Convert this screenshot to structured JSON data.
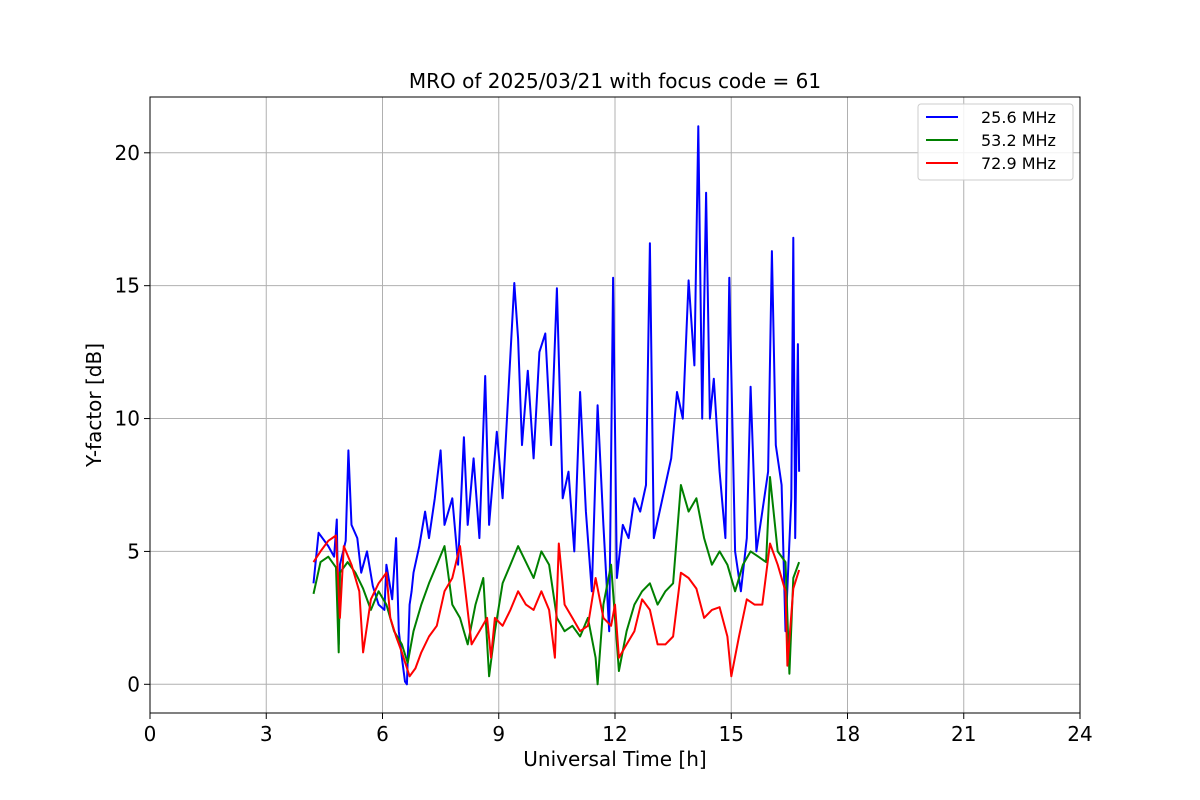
{
  "chart_data": {
    "type": "line",
    "title": "MRO of 2025/03/21 with focus code = 61",
    "xlabel": "Universal Time [h]",
    "ylabel": "Y-factor [dB]",
    "xlim": [
      0,
      24
    ],
    "ylim": [
      -1.08,
      22.1
    ],
    "xticks": [
      0,
      3,
      6,
      9,
      12,
      15,
      18,
      21,
      24
    ],
    "yticks": [
      0,
      5,
      10,
      15,
      20
    ],
    "grid": true,
    "legend_position": "top-right",
    "series": [
      {
        "name": "25.6 MHz",
        "color": "#0000ff",
        "values": [
          [
            4.22,
            3.8
          ],
          [
            4.35,
            5.7
          ],
          [
            4.6,
            5.2
          ],
          [
            4.75,
            4.8
          ],
          [
            4.82,
            6.2
          ],
          [
            4.87,
            1.5
          ],
          [
            4.9,
            4.5
          ],
          [
            5.05,
            5.4
          ],
          [
            5.12,
            8.8
          ],
          [
            5.2,
            6.0
          ],
          [
            5.35,
            5.5
          ],
          [
            5.45,
            4.2
          ],
          [
            5.6,
            5.0
          ],
          [
            5.75,
            3.7
          ],
          [
            5.9,
            3.0
          ],
          [
            6.05,
            2.8
          ],
          [
            6.1,
            4.5
          ],
          [
            6.25,
            3.2
          ],
          [
            6.35,
            5.5
          ],
          [
            6.42,
            2.0
          ],
          [
            6.5,
            1.0
          ],
          [
            6.58,
            0.1
          ],
          [
            6.63,
            0.0
          ],
          [
            6.7,
            3.0
          ],
          [
            6.75,
            3.5
          ],
          [
            6.8,
            4.2
          ],
          [
            6.95,
            5.2
          ],
          [
            7.1,
            6.5
          ],
          [
            7.2,
            5.5
          ],
          [
            7.35,
            7.0
          ],
          [
            7.5,
            8.8
          ],
          [
            7.6,
            6.0
          ],
          [
            7.8,
            7.0
          ],
          [
            7.95,
            4.5
          ],
          [
            8.1,
            9.3
          ],
          [
            8.2,
            6.0
          ],
          [
            8.35,
            8.5
          ],
          [
            8.5,
            5.5
          ],
          [
            8.65,
            11.6
          ],
          [
            8.75,
            6.0
          ],
          [
            8.95,
            9.5
          ],
          [
            9.1,
            7.0
          ],
          [
            9.25,
            11.0
          ],
          [
            9.4,
            15.1
          ],
          [
            9.5,
            13.0
          ],
          [
            9.6,
            9.0
          ],
          [
            9.75,
            11.8
          ],
          [
            9.9,
            8.5
          ],
          [
            10.05,
            12.5
          ],
          [
            10.2,
            13.2
          ],
          [
            10.35,
            9.0
          ],
          [
            10.5,
            14.9
          ],
          [
            10.65,
            7.0
          ],
          [
            10.8,
            8.0
          ],
          [
            10.95,
            5.0
          ],
          [
            11.1,
            11.0
          ],
          [
            11.25,
            6.5
          ],
          [
            11.4,
            3.5
          ],
          [
            11.55,
            10.5
          ],
          [
            11.7,
            6.0
          ],
          [
            11.85,
            2.0
          ],
          [
            11.95,
            15.3
          ],
          [
            12.05,
            4.0
          ],
          [
            12.2,
            6.0
          ],
          [
            12.35,
            5.5
          ],
          [
            12.5,
            7.0
          ],
          [
            12.65,
            6.5
          ],
          [
            12.8,
            7.5
          ],
          [
            12.9,
            16.6
          ],
          [
            13.0,
            5.5
          ],
          [
            13.15,
            6.5
          ],
          [
            13.3,
            7.5
          ],
          [
            13.45,
            8.5
          ],
          [
            13.6,
            11.0
          ],
          [
            13.75,
            10.0
          ],
          [
            13.9,
            15.2
          ],
          [
            14.05,
            12.0
          ],
          [
            14.15,
            21.0
          ],
          [
            14.25,
            10.0
          ],
          [
            14.35,
            18.5
          ],
          [
            14.45,
            10.0
          ],
          [
            14.55,
            11.5
          ],
          [
            14.7,
            8.0
          ],
          [
            14.85,
            5.5
          ],
          [
            14.95,
            15.3
          ],
          [
            15.1,
            5.0
          ],
          [
            15.25,
            3.5
          ],
          [
            15.4,
            5.5
          ],
          [
            15.5,
            11.2
          ],
          [
            15.65,
            5.0
          ],
          [
            15.8,
            6.5
          ],
          [
            15.95,
            8.0
          ],
          [
            16.05,
            16.3
          ],
          [
            16.15,
            9.0
          ],
          [
            16.3,
            7.5
          ],
          [
            16.4,
            2.0
          ],
          [
            16.55,
            7.0
          ],
          [
            16.6,
            16.8
          ],
          [
            16.65,
            5.5
          ],
          [
            16.72,
            12.8
          ],
          [
            16.75,
            8.0
          ]
        ]
      },
      {
        "name": "53.2 MHz",
        "color": "#008000",
        "values": [
          [
            4.22,
            3.4
          ],
          [
            4.4,
            4.6
          ],
          [
            4.6,
            4.8
          ],
          [
            4.8,
            4.4
          ],
          [
            4.87,
            1.2
          ],
          [
            4.9,
            4.2
          ],
          [
            5.1,
            4.6
          ],
          [
            5.3,
            4.2
          ],
          [
            5.5,
            3.6
          ],
          [
            5.7,
            2.8
          ],
          [
            5.9,
            3.5
          ],
          [
            6.1,
            3.0
          ],
          [
            6.3,
            2.0
          ],
          [
            6.5,
            1.5
          ],
          [
            6.65,
            0.8
          ],
          [
            6.8,
            2.0
          ],
          [
            7.0,
            3.0
          ],
          [
            7.2,
            3.8
          ],
          [
            7.4,
            4.5
          ],
          [
            7.6,
            5.2
          ],
          [
            7.8,
            3.0
          ],
          [
            8.0,
            2.5
          ],
          [
            8.2,
            1.5
          ],
          [
            8.4,
            3.0
          ],
          [
            8.6,
            4.0
          ],
          [
            8.75,
            0.3
          ],
          [
            8.9,
            2.0
          ],
          [
            9.1,
            3.8
          ],
          [
            9.3,
            4.5
          ],
          [
            9.5,
            5.2
          ],
          [
            9.7,
            4.6
          ],
          [
            9.9,
            4.0
          ],
          [
            10.1,
            5.0
          ],
          [
            10.3,
            4.5
          ],
          [
            10.5,
            2.5
          ],
          [
            10.7,
            2.0
          ],
          [
            10.9,
            2.2
          ],
          [
            11.1,
            1.8
          ],
          [
            11.3,
            2.5
          ],
          [
            11.5,
            1.0
          ],
          [
            11.55,
            0.0
          ],
          [
            11.7,
            3.0
          ],
          [
            11.9,
            4.5
          ],
          [
            12.1,
            0.5
          ],
          [
            12.3,
            2.0
          ],
          [
            12.5,
            3.0
          ],
          [
            12.7,
            3.5
          ],
          [
            12.9,
            3.8
          ],
          [
            13.1,
            3.0
          ],
          [
            13.3,
            3.5
          ],
          [
            13.5,
            3.8
          ],
          [
            13.7,
            7.5
          ],
          [
            13.9,
            6.5
          ],
          [
            14.1,
            7.0
          ],
          [
            14.3,
            5.5
          ],
          [
            14.5,
            4.5
          ],
          [
            14.7,
            5.0
          ],
          [
            14.9,
            4.5
          ],
          [
            15.1,
            3.5
          ],
          [
            15.3,
            4.5
          ],
          [
            15.5,
            5.0
          ],
          [
            15.7,
            4.8
          ],
          [
            15.9,
            4.6
          ],
          [
            16.0,
            7.8
          ],
          [
            16.2,
            5.0
          ],
          [
            16.4,
            4.6
          ],
          [
            16.5,
            0.4
          ],
          [
            16.6,
            4.0
          ],
          [
            16.75,
            4.6
          ]
        ]
      },
      {
        "name": "72.9 MHz",
        "color": "#ff0000",
        "values": [
          [
            4.22,
            4.6
          ],
          [
            4.4,
            5.0
          ],
          [
            4.6,
            5.4
          ],
          [
            4.8,
            5.6
          ],
          [
            4.9,
            2.5
          ],
          [
            5.0,
            5.2
          ],
          [
            5.2,
            4.5
          ],
          [
            5.4,
            3.5
          ],
          [
            5.5,
            1.2
          ],
          [
            5.7,
            3.2
          ],
          [
            5.9,
            3.8
          ],
          [
            6.1,
            4.2
          ],
          [
            6.2,
            2.5
          ],
          [
            6.35,
            1.8
          ],
          [
            6.5,
            1.2
          ],
          [
            6.7,
            0.3
          ],
          [
            6.85,
            0.6
          ],
          [
            7.0,
            1.2
          ],
          [
            7.2,
            1.8
          ],
          [
            7.4,
            2.2
          ],
          [
            7.6,
            3.5
          ],
          [
            7.8,
            4.0
          ],
          [
            8.0,
            5.2
          ],
          [
            8.1,
            4.0
          ],
          [
            8.3,
            1.5
          ],
          [
            8.5,
            2.0
          ],
          [
            8.7,
            2.5
          ],
          [
            8.8,
            1.0
          ],
          [
            8.9,
            2.5
          ],
          [
            9.1,
            2.2
          ],
          [
            9.3,
            2.8
          ],
          [
            9.5,
            3.5
          ],
          [
            9.7,
            3.0
          ],
          [
            9.9,
            2.8
          ],
          [
            10.1,
            3.5
          ],
          [
            10.3,
            2.8
          ],
          [
            10.45,
            1.0
          ],
          [
            10.55,
            5.3
          ],
          [
            10.7,
            3.0
          ],
          [
            10.9,
            2.5
          ],
          [
            11.1,
            2.0
          ],
          [
            11.3,
            2.2
          ],
          [
            11.5,
            4.0
          ],
          [
            11.7,
            2.5
          ],
          [
            11.9,
            2.2
          ],
          [
            12.0,
            3.0
          ],
          [
            12.1,
            1.0
          ],
          [
            12.3,
            1.5
          ],
          [
            12.5,
            2.0
          ],
          [
            12.7,
            3.2
          ],
          [
            12.9,
            2.8
          ],
          [
            13.1,
            1.5
          ],
          [
            13.3,
            1.5
          ],
          [
            13.5,
            1.8
          ],
          [
            13.7,
            4.2
          ],
          [
            13.9,
            4.0
          ],
          [
            14.1,
            3.6
          ],
          [
            14.3,
            2.5
          ],
          [
            14.5,
            2.8
          ],
          [
            14.7,
            2.9
          ],
          [
            14.9,
            1.8
          ],
          [
            15.0,
            0.3
          ],
          [
            15.2,
            1.8
          ],
          [
            15.4,
            3.2
          ],
          [
            15.6,
            3.0
          ],
          [
            15.8,
            3.0
          ],
          [
            16.0,
            5.3
          ],
          [
            16.2,
            4.5
          ],
          [
            16.4,
            3.5
          ],
          [
            16.45,
            0.7
          ],
          [
            16.6,
            3.6
          ],
          [
            16.75,
            4.3
          ]
        ]
      }
    ]
  }
}
